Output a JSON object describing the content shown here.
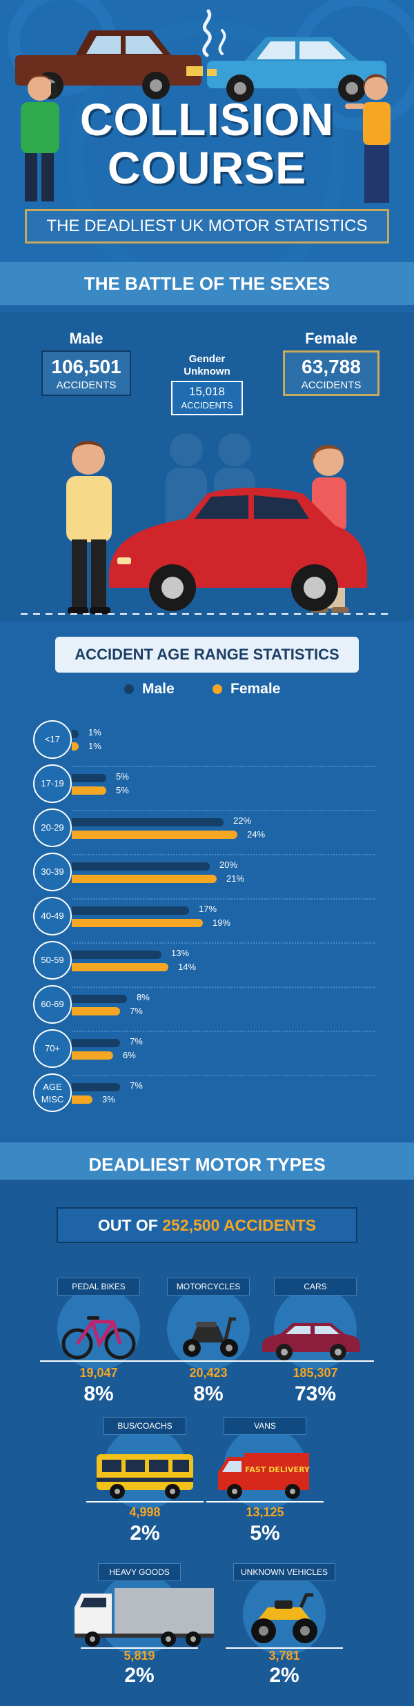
{
  "header": {
    "title_line1": "COLLISION",
    "title_line2": "COURSE",
    "subtitle": "THE DEADLIEST UK MOTOR STATISTICS"
  },
  "battle": {
    "heading": "THE BATTLE OF THE SEXES",
    "male": {
      "title": "Male",
      "value": "106,501",
      "label": "ACCIDENTS"
    },
    "female": {
      "title": "Female",
      "value": "63,788",
      "label": "ACCIDENTS"
    },
    "unknown": {
      "title_line1": "Gender",
      "title_line2": "Unknown",
      "value": "15,018",
      "label": "ACCIDENTS"
    }
  },
  "age": {
    "heading": "ACCIDENT AGE RANGE STATISTICS",
    "legend": [
      {
        "name": "Male",
        "color": "#163f67"
      },
      {
        "name": "Female",
        "color": "#f5a623"
      }
    ],
    "rows": [
      {
        "range": "<17",
        "male": 1,
        "female": 1,
        "male_label": "1%",
        "female_label": "1%"
      },
      {
        "range": "17-19",
        "male": 5,
        "female": 5,
        "male_label": "5%",
        "female_label": "5%"
      },
      {
        "range": "20-29",
        "male": 22,
        "female": 24,
        "male_label": "22%",
        "female_label": "24%"
      },
      {
        "range": "30-39",
        "male": 20,
        "female": 21,
        "male_label": "20%",
        "female_label": "21%"
      },
      {
        "range": "40-49",
        "male": 17,
        "female": 19,
        "male_label": "17%",
        "female_label": "19%"
      },
      {
        "range": "50-59",
        "male": 13,
        "female": 14,
        "male_label": "13%",
        "female_label": "14%"
      },
      {
        "range": "60-69",
        "male": 8,
        "female": 7,
        "male_label": "8%",
        "female_label": "7%"
      },
      {
        "range": "70+",
        "male": 7,
        "female": 6,
        "male_label": "7%",
        "female_label": "6%"
      },
      {
        "range_line1": "AGE",
        "range_line2": "MISC",
        "male": 7,
        "female": 3,
        "male_label": "7%",
        "female_label": "3%"
      }
    ]
  },
  "motor": {
    "heading": "DEADLIEST MOTOR TYPES",
    "total_prefix": "OUT OF",
    "total_value": "252,500 ACCIDENTS",
    "vehicles": [
      {
        "name": "PEDAL BIKES",
        "count": "19,047",
        "pct": "8%",
        "icon": "bicycle-icon"
      },
      {
        "name": "MOTORCYCLES",
        "count": "20,423",
        "pct": "8%",
        "icon": "scooter-icon"
      },
      {
        "name": "CARS",
        "count": "185,307",
        "pct": "73%",
        "icon": "car-icon"
      },
      {
        "name": "BUS/COACHS",
        "count": "4,998",
        "pct": "2%",
        "icon": "bus-icon"
      },
      {
        "name": "VANS",
        "count": "13,125",
        "pct": "5%",
        "icon": "van-icon"
      },
      {
        "name": "HEAVY GOODS",
        "count": "5,819",
        "pct": "2%",
        "icon": "truck-icon"
      },
      {
        "name": "UNKNOWN VEHICLES",
        "count": "3,781",
        "pct": "2%",
        "icon": "quad-bike-icon"
      }
    ],
    "van_livery": "FAST DELIVERY"
  },
  "chart_data": {
    "type": "bar",
    "title": "ACCIDENT AGE RANGE STATISTICS",
    "categories": [
      "<17",
      "17-19",
      "20-29",
      "30-39",
      "40-49",
      "50-59",
      "60-69",
      "70+",
      "AGE MISC"
    ],
    "series": [
      {
        "name": "Male",
        "values": [
          1,
          5,
          22,
          20,
          17,
          13,
          8,
          7,
          7
        ]
      },
      {
        "name": "Female",
        "values": [
          1,
          5,
          24,
          21,
          19,
          14,
          7,
          6,
          3
        ]
      }
    ],
    "orientation": "horizontal",
    "legend": "top"
  }
}
